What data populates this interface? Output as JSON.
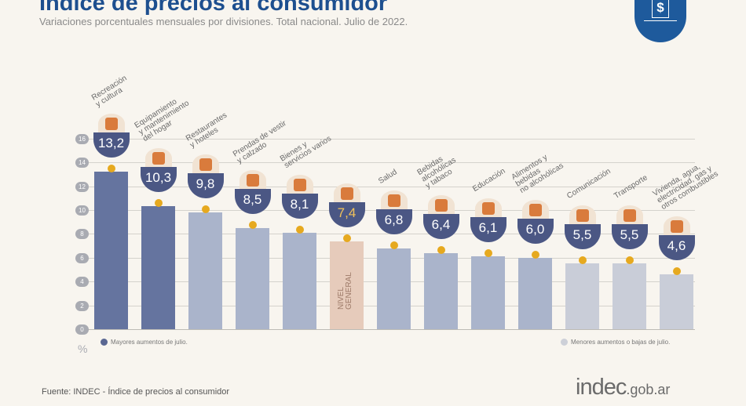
{
  "header": {
    "title": "Índice de precios al consumidor",
    "subtitle": "Variaciones porcentuales mensuales por divisiones. Total nacional. Julio de 2022."
  },
  "chart_data": {
    "type": "bar",
    "title": "Índice de precios al consumidor",
    "subtitle": "Variaciones porcentuales mensuales por divisiones. Total nacional. Julio de 2022.",
    "ylabel": "%",
    "ylim": [
      0,
      16
    ],
    "yticks": [
      "0",
      "2",
      "4",
      "6",
      "8",
      "10",
      "12",
      "14",
      "16"
    ],
    "grid": true,
    "categories": [
      "Recreación\ny cultura",
      "Equipamiento\ny mantenimiento\ndel hogar",
      "Restaurantes\ny hoteles",
      "Prendas de vestir\ny calzado",
      "Bienes y\nservicios varios",
      "NIVEL\nGENERAL",
      "Salud",
      "Bebidas\nalcohólicas\ny tabaco",
      "Educación",
      "Alimentos y\nbebidas\nno alcohólicas",
      "Comunicación",
      "Transporte",
      "Vivienda, agua,\nelectricidad, gas y\notros combustibles"
    ],
    "values": [
      13.2,
      10.3,
      9.8,
      8.5,
      8.1,
      7.4,
      6.8,
      6.4,
      6.1,
      6.0,
      5.5,
      5.5,
      4.6
    ],
    "data_labels": [
      "13,2",
      "10,3",
      "9,8",
      "8,5",
      "8,1",
      "7,4",
      "6,8",
      "6,4",
      "6,1",
      "6,0",
      "5,5",
      "5,5",
      "4,6"
    ],
    "groups": [
      "mayores",
      "mayores",
      "medio",
      "medio",
      "medio",
      "general",
      "medio",
      "medio",
      "medio",
      "medio",
      "menores",
      "menores",
      "menores"
    ],
    "colors": {
      "mayores": "#65749f",
      "medio": "#aab4cb",
      "general": "#e6cbbb",
      "menores": "#c9cdd8",
      "dot": "#e6a91f",
      "badge": "#4b5784",
      "general_label": "#f2c25a"
    },
    "legend": [
      {
        "label": "Mayores aumentos de julio.",
        "color": "#5a6792",
        "placement": "bottom-left"
      },
      {
        "label": "Menores aumentos o bajas de julio.",
        "color": "#cdd0d8",
        "placement": "bottom-right"
      }
    ]
  },
  "footer": {
    "source": "Fuente: INDEC - Índice de precios al consumidor",
    "brand_main": "indec",
    "brand_suffix": ".gob.ar"
  },
  "logo": {
    "symbol": "$"
  }
}
